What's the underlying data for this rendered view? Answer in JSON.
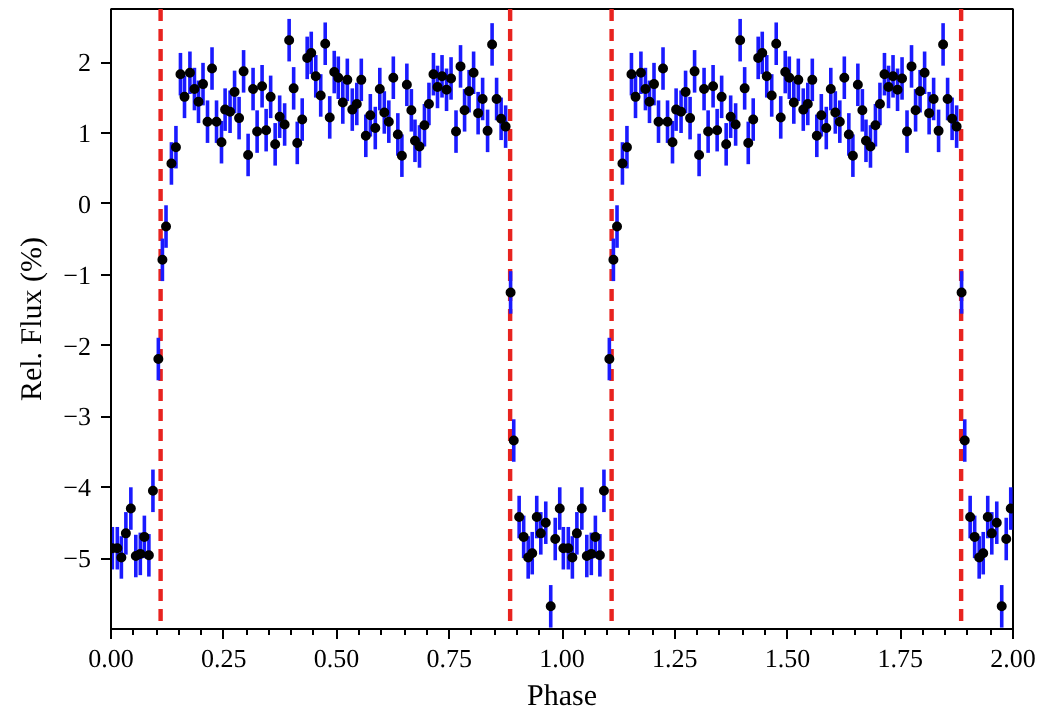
{
  "chart_data": {
    "type": "scatter",
    "xlabel": "Phase",
    "ylabel": "Rel. Flux (%)",
    "xlim": [
      0,
      2
    ],
    "ylim": [
      -6,
      2.75
    ],
    "xticks": [
      {
        "value": 0,
        "label": "0.00"
      },
      {
        "value": 0.25,
        "label": "0.25"
      },
      {
        "value": 0.5,
        "label": "0.50"
      },
      {
        "value": 0.75,
        "label": "0.75"
      },
      {
        "value": 1,
        "label": "1.00"
      },
      {
        "value": 1.25,
        "label": "1.25"
      },
      {
        "value": 1.5,
        "label": "1.50"
      },
      {
        "value": 1.75,
        "label": "1.75"
      },
      {
        "value": 2,
        "label": "2.00"
      }
    ],
    "yticks": [
      {
        "value": -5,
        "label": "−5"
      },
      {
        "value": -4,
        "label": "−4"
      },
      {
        "value": -3,
        "label": "−3"
      },
      {
        "value": -2,
        "label": "−2"
      },
      {
        "value": -1,
        "label": "−1"
      },
      0,
      1,
      2
    ],
    "grid": false,
    "marker": "circle",
    "ref_lines": [
      {
        "axis": "x",
        "value": 0.11,
        "color": "#e8231f",
        "line_style": "dashed"
      },
      {
        "axis": "x",
        "value": 0.885,
        "color": "#e8231f",
        "line_style": "dashed"
      },
      {
        "axis": "x",
        "value": 1.11,
        "color": "#e8231f",
        "line_style": "dashed"
      },
      {
        "axis": "x",
        "value": 1.885,
        "color": "#e8231f",
        "line_style": "dashed"
      }
    ],
    "x": [
      0.003,
      0.014,
      0.023,
      0.033,
      0.044,
      0.055,
      0.065,
      0.074,
      0.084,
      0.093,
      0.105,
      0.114,
      0.122,
      0.134,
      0.144,
      0.154,
      0.163,
      0.175,
      0.185,
      0.194,
      0.204,
      0.214,
      0.224,
      0.234,
      0.245,
      0.253,
      0.264,
      0.274,
      0.284,
      0.294,
      0.304,
      0.315,
      0.324,
      0.335,
      0.344,
      0.354,
      0.364,
      0.374,
      0.385,
      0.395,
      0.405,
      0.413,
      0.424,
      0.435,
      0.444,
      0.454,
      0.465,
      0.475,
      0.485,
      0.495,
      0.504,
      0.514,
      0.524,
      0.535,
      0.545,
      0.555,
      0.565,
      0.575,
      0.586,
      0.596,
      0.606,
      0.616,
      0.626,
      0.636,
      0.645,
      0.656,
      0.666,
      0.674,
      0.684,
      0.695,
      0.705,
      0.715,
      0.724,
      0.734,
      0.744,
      0.754,
      0.765,
      0.775,
      0.784,
      0.794,
      0.804,
      0.814,
      0.824,
      0.835,
      0.845,
      0.855,
      0.865,
      0.875,
      0.886,
      0.893,
      0.905,
      0.915,
      0.925,
      0.934,
      0.944,
      0.953,
      0.964,
      0.975,
      0.985,
      0.995,
      1.003,
      1.014,
      1.023,
      1.033,
      1.044,
      1.055,
      1.065,
      1.074,
      1.084,
      1.093,
      1.105,
      1.114,
      1.122,
      1.134,
      1.144,
      1.154,
      1.163,
      1.175,
      1.185,
      1.194,
      1.204,
      1.214,
      1.224,
      1.234,
      1.245,
      1.253,
      1.264,
      1.274,
      1.284,
      1.294,
      1.304,
      1.315,
      1.324,
      1.335,
      1.344,
      1.354,
      1.364,
      1.374,
      1.385,
      1.395,
      1.405,
      1.413,
      1.424,
      1.435,
      1.444,
      1.454,
      1.465,
      1.475,
      1.485,
      1.495,
      1.504,
      1.514,
      1.524,
      1.535,
      1.545,
      1.555,
      1.565,
      1.575,
      1.586,
      1.596,
      1.606,
      1.616,
      1.626,
      1.636,
      1.645,
      1.656,
      1.666,
      1.674,
      1.684,
      1.695,
      1.705,
      1.715,
      1.724,
      1.734,
      1.744,
      1.754,
      1.765,
      1.775,
      1.784,
      1.794,
      1.804,
      1.814,
      1.824,
      1.835,
      1.845,
      1.855,
      1.865,
      1.875,
      1.886,
      1.893,
      1.905,
      1.915,
      1.925,
      1.934,
      1.944,
      1.953,
      1.964,
      1.975,
      1.985,
      1.995
    ],
    "series": [
      {
        "color": "#000000",
        "values": [
          -4.86,
          -4.86,
          -4.99,
          -4.65,
          -4.3,
          -4.97,
          -4.94,
          -4.7,
          -4.96,
          -4.05,
          -2.19,
          -0.79,
          -0.32,
          0.57,
          0.8,
          1.83,
          1.51,
          1.85,
          1.62,
          1.44,
          1.69,
          1.16,
          1.91,
          1.16,
          0.87,
          1.33,
          1.3,
          1.58,
          1.21,
          1.87,
          0.69,
          1.62,
          1.02,
          1.66,
          1.04,
          1.51,
          0.84,
          1.23,
          1.12,
          2.31,
          1.63,
          0.86,
          1.19,
          2.06,
          2.13,
          1.8,
          1.53,
          2.26,
          1.22,
          1.86,
          1.78,
          1.43,
          1.75,
          1.33,
          1.41,
          1.75,
          0.96,
          1.25,
          1.07,
          1.62,
          1.29,
          1.16,
          1.78,
          0.98,
          0.68,
          1.68,
          1.32,
          0.89,
          0.81,
          1.11,
          1.41,
          1.83,
          1.65,
          1.8,
          1.61,
          1.77,
          1.02,
          1.94,
          1.32,
          1.59,
          1.85,
          1.28,
          1.48,
          1.03,
          2.25,
          1.48,
          1.2,
          1.09,
          -1.25,
          -3.34,
          -4.42,
          -4.7,
          -4.99,
          -4.93,
          -4.42,
          -4.65,
          -4.5,
          -5.68,
          -4.73,
          -4.3,
          -4.86,
          -4.86,
          -4.99,
          -4.65,
          -4.3,
          -4.97,
          -4.94,
          -4.7,
          -4.96,
          -4.05,
          -2.19,
          -0.79,
          -0.32,
          0.57,
          0.8,
          1.83,
          1.51,
          1.85,
          1.62,
          1.44,
          1.69,
          1.16,
          1.91,
          1.16,
          0.87,
          1.33,
          1.3,
          1.58,
          1.21,
          1.87,
          0.69,
          1.62,
          1.02,
          1.66,
          1.04,
          1.51,
          0.84,
          1.23,
          1.12,
          2.31,
          1.63,
          0.86,
          1.19,
          2.06,
          2.13,
          1.8,
          1.53,
          2.26,
          1.22,
          1.86,
          1.78,
          1.43,
          1.75,
          1.33,
          1.41,
          1.75,
          0.96,
          1.25,
          1.07,
          1.62,
          1.29,
          1.16,
          1.78,
          0.98,
          0.68,
          1.68,
          1.32,
          0.89,
          0.81,
          1.11,
          1.41,
          1.83,
          1.65,
          1.8,
          1.61,
          1.77,
          1.02,
          1.94,
          1.32,
          1.59,
          1.85,
          1.28,
          1.48,
          1.03,
          2.25,
          1.48,
          1.2,
          1.09,
          -1.25,
          -3.34,
          -4.42,
          -4.7,
          -4.99,
          -4.93,
          -4.42,
          -4.65,
          -4.5,
          -5.68,
          -4.73,
          -4.3
        ],
        "errors": [
          0.3,
          0.3,
          0.3,
          0.3,
          0.3,
          0.3,
          0.3,
          0.3,
          0.3,
          0.3,
          0.3,
          0.3,
          0.3,
          0.3,
          0.3,
          0.3,
          0.3,
          0.3,
          0.3,
          0.3,
          0.3,
          0.3,
          0.3,
          0.3,
          0.3,
          0.3,
          0.3,
          0.3,
          0.3,
          0.3,
          0.3,
          0.3,
          0.3,
          0.3,
          0.3,
          0.3,
          0.3,
          0.3,
          0.3,
          0.3,
          0.3,
          0.3,
          0.3,
          0.3,
          0.3,
          0.3,
          0.3,
          0.3,
          0.3,
          0.3,
          0.3,
          0.3,
          0.3,
          0.3,
          0.3,
          0.3,
          0.3,
          0.3,
          0.3,
          0.3,
          0.3,
          0.3,
          0.3,
          0.3,
          0.3,
          0.3,
          0.3,
          0.3,
          0.3,
          0.3,
          0.3,
          0.3,
          0.3,
          0.3,
          0.3,
          0.3,
          0.3,
          0.3,
          0.3,
          0.3,
          0.3,
          0.3,
          0.3,
          0.3,
          0.3,
          0.3,
          0.3,
          0.3,
          0.3,
          0.3,
          0.3,
          0.3,
          0.3,
          0.3,
          0.3,
          0.3,
          0.3,
          0.3,
          0.3,
          0.3,
          0.3,
          0.3,
          0.3,
          0.3,
          0.3,
          0.3,
          0.3,
          0.3,
          0.3,
          0.3,
          0.3,
          0.3,
          0.3,
          0.3,
          0.3,
          0.3,
          0.3,
          0.3,
          0.3,
          0.3,
          0.3,
          0.3,
          0.3,
          0.3,
          0.3,
          0.3,
          0.3,
          0.3,
          0.3,
          0.3,
          0.3,
          0.3,
          0.3,
          0.3,
          0.3,
          0.3,
          0.3,
          0.3,
          0.3,
          0.3,
          0.3,
          0.3,
          0.3,
          0.3,
          0.3,
          0.3,
          0.3,
          0.3,
          0.3,
          0.3,
          0.3,
          0.3,
          0.3,
          0.3,
          0.3,
          0.3,
          0.3,
          0.3,
          0.3,
          0.3,
          0.3,
          0.3,
          0.3,
          0.3,
          0.3,
          0.3,
          0.3,
          0.3,
          0.3,
          0.3,
          0.3,
          0.3,
          0.3,
          0.3,
          0.3,
          0.3,
          0.3,
          0.3,
          0.3,
          0.3,
          0.3,
          0.3,
          0.3,
          0.3,
          0.3,
          0.3,
          0.3,
          0.3,
          0.3,
          0.3,
          0.3,
          0.3,
          0.3,
          0.3,
          0.3,
          0.3,
          0.3,
          0.3,
          0.3,
          0.3
        ]
      }
    ]
  }
}
